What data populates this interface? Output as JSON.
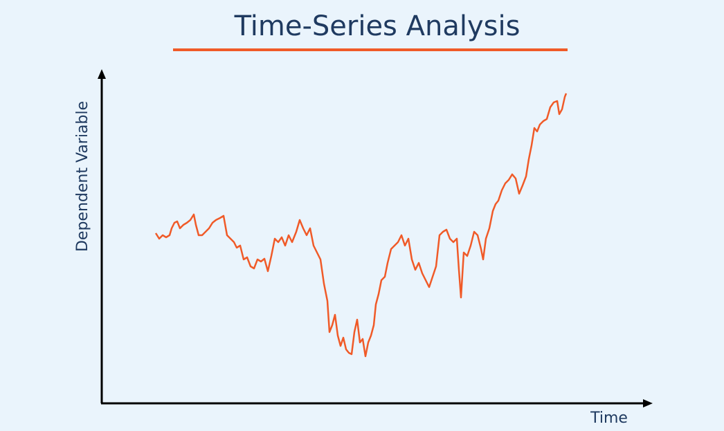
{
  "chart_data": {
    "type": "line",
    "title": "Time-Series Analysis",
    "x_label": "Time",
    "y_label": "Dependent Variable",
    "xlim": [
      0,
      793
    ],
    "ylim": [
      0,
      478
    ],
    "series": [
      {
        "color": "#f05a28",
        "x": [
          78,
          83,
          88,
          93,
          98,
          101,
          105,
          109,
          113,
          118,
          123,
          128,
          133,
          136,
          140,
          145,
          150,
          155,
          160,
          165,
          171,
          176,
          181,
          186,
          191,
          195,
          200,
          205,
          210,
          215,
          220,
          225,
          230,
          235,
          240,
          245,
          250,
          255,
          260,
          265,
          270,
          275,
          281,
          286,
          291,
          296,
          301,
          306,
          311,
          316,
          321,
          326,
          329,
          333,
          337,
          341,
          345,
          349,
          353,
          357,
          361,
          365,
          369,
          373,
          377,
          381,
          385,
          389,
          393,
          396,
          400,
          404,
          409,
          413,
          418,
          423,
          428,
          433,
          438,
          443,
          448,
          453,
          458,
          463,
          468,
          473,
          478,
          483,
          488,
          493,
          498,
          503,
          508,
          513,
          516,
          519,
          523,
          528,
          533,
          538,
          543,
          548,
          551,
          555,
          560,
          565,
          569,
          573,
          578,
          583,
          588,
          593,
          598,
          603,
          608,
          613,
          617,
          621,
          625,
          629,
          633,
          638,
          643,
          648,
          653,
          658,
          661,
          665,
          669,
          671
        ],
        "values": [
          246,
          238,
          243,
          240,
          243,
          253,
          261,
          263,
          253,
          258,
          261,
          265,
          273,
          258,
          243,
          243,
          248,
          253,
          261,
          265,
          268,
          271,
          243,
          238,
          233,
          225,
          228,
          208,
          211,
          198,
          195,
          208,
          205,
          209,
          191,
          213,
          238,
          233,
          240,
          228,
          243,
          233,
          248,
          265,
          253,
          243,
          253,
          228,
          218,
          208,
          173,
          148,
          103,
          113,
          128,
          98,
          83,
          95,
          78,
          73,
          71,
          103,
          121,
          88,
          93,
          68,
          88,
          98,
          113,
          143,
          158,
          178,
          183,
          203,
          223,
          228,
          233,
          243,
          228,
          238,
          208,
          193,
          203,
          188,
          178,
          168,
          183,
          198,
          243,
          248,
          251,
          238,
          233,
          238,
          193,
          153,
          218,
          213,
          228,
          248,
          243,
          223,
          208,
          238,
          253,
          278,
          288,
          293,
          308,
          318,
          323,
          331,
          325,
          303,
          315,
          328,
          353,
          373,
          398,
          393,
          403,
          408,
          411,
          428,
          435,
          437,
          418,
          425,
          443,
          448
        ]
      }
    ]
  }
}
